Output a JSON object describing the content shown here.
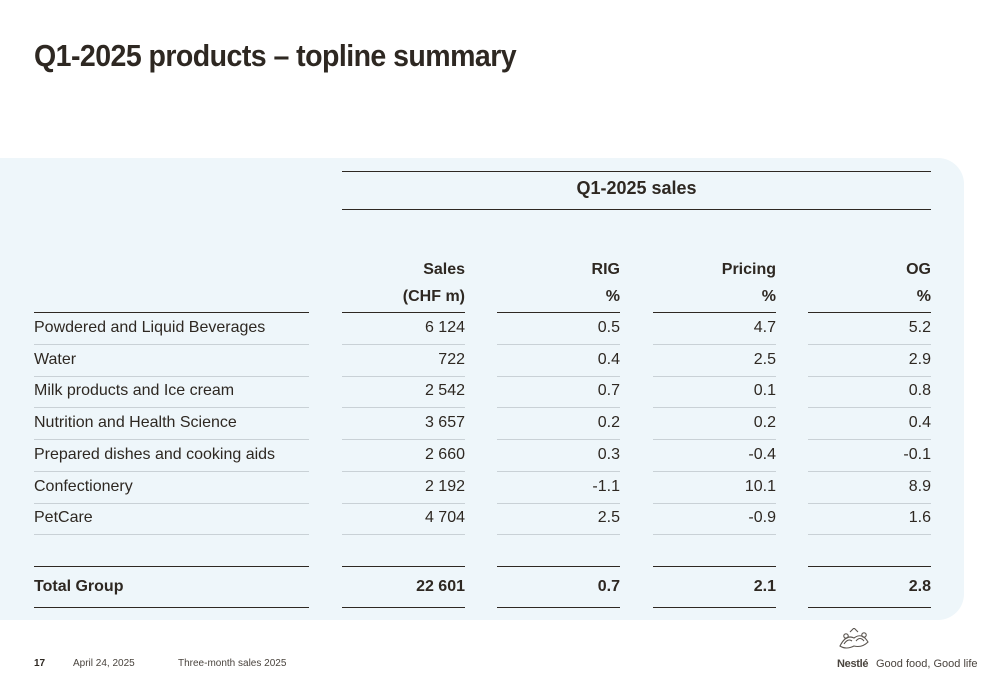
{
  "title": "Q1-2025 products – topline summary",
  "group_header": "Q1-2025 sales",
  "columns": [
    {
      "line1": "Sales",
      "line2": "(CHF m)"
    },
    {
      "line1": "RIG",
      "line2": "%"
    },
    {
      "line1": "Pricing",
      "line2": "%"
    },
    {
      "line1": "OG",
      "line2": "%"
    }
  ],
  "rows": [
    {
      "label": "Powdered and Liquid Beverages",
      "values": [
        "6 124",
        "0.5",
        "4.7",
        "5.2"
      ]
    },
    {
      "label": "Water",
      "values": [
        "722",
        "0.4",
        "2.5",
        "2.9"
      ]
    },
    {
      "label": "Milk products and Ice cream",
      "values": [
        "2 542",
        "0.7",
        "0.1",
        "0.8"
      ]
    },
    {
      "label": "Nutrition and Health Science",
      "values": [
        "3 657",
        "0.2",
        "0.2",
        "0.4"
      ]
    },
    {
      "label": "Prepared dishes and cooking aids",
      "values": [
        "2 660",
        "0.3",
        "-0.4",
        "-0.1"
      ]
    },
    {
      "label": "Confectionery",
      "values": [
        "2 192",
        "-1.1",
        "10.1",
        "8.9"
      ]
    },
    {
      "label": "PetCare",
      "values": [
        "4 704",
        "2.5",
        "-0.9",
        "1.6"
      ]
    }
  ],
  "total": {
    "label": "Total Group",
    "values": [
      "22 601",
      "0.7",
      "2.1",
      "2.8"
    ]
  },
  "footer": {
    "page": "17",
    "date": "April 24, 2025",
    "doc": "Three-month sales 2025",
    "brand": "Nestlé",
    "tagline": "Good food, Good life"
  },
  "colors": {
    "panel": "#eef6fa",
    "text": "#2e2822",
    "rule": "#2e2822",
    "thin_rule": "#c9d1d6"
  }
}
